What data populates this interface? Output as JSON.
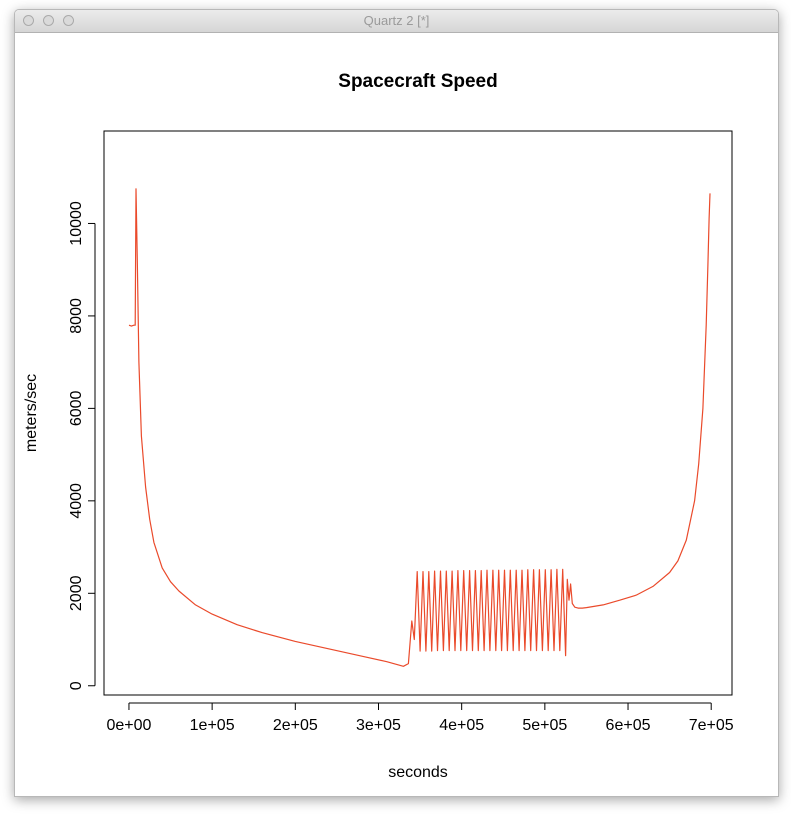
{
  "window": {
    "title": "Quartz 2 [*]"
  },
  "chart_data": {
    "type": "line",
    "title": "Spacecraft Speed",
    "xlabel": "seconds",
    "ylabel": "meters/sec",
    "xlim": [
      -30000,
      725000
    ],
    "ylim": [
      -200,
      12000
    ],
    "xticks": [
      0,
      100000,
      200000,
      300000,
      400000,
      500000,
      600000,
      700000
    ],
    "xtick_labels": [
      "0e+00",
      "1e+05",
      "2e+05",
      "3e+05",
      "4e+05",
      "5e+05",
      "6e+05",
      "7e+05"
    ],
    "yticks": [
      0,
      2000,
      4000,
      6000,
      8000,
      10000
    ],
    "ytick_labels": [
      "0",
      "2000",
      "4000",
      "6000",
      "8000",
      "10000"
    ],
    "grid": false,
    "legend": "none",
    "series": [
      {
        "color": "#ea4a2b",
        "x": [
          0,
          3000,
          6000,
          7500,
          8500,
          10000,
          12000,
          15000,
          20000,
          25000,
          30000,
          40000,
          50000,
          60000,
          80000,
          100000,
          130000,
          160000,
          200000,
          240000,
          280000,
          310000,
          330000,
          336000,
          340000,
          343000,
          346500,
          350000,
          353500,
          357000,
          360500,
          364000,
          367500,
          371000,
          374500,
          378000,
          381500,
          385000,
          388500,
          392000,
          395500,
          399000,
          402500,
          406000,
          409500,
          413000,
          416500,
          420000,
          423500,
          427000,
          430500,
          434000,
          437500,
          441000,
          444500,
          448000,
          451500,
          455000,
          458500,
          462000,
          465500,
          469000,
          472500,
          476000,
          479500,
          483000,
          486500,
          490000,
          493500,
          497000,
          500500,
          504000,
          507500,
          511000,
          514500,
          518000,
          521500,
          525000,
          527000,
          529000,
          531000,
          533000,
          536000,
          540000,
          545000,
          550000,
          570000,
          590000,
          610000,
          630000,
          650000,
          660000,
          670000,
          680000,
          685000,
          690000,
          694000,
          696000,
          697500,
          698500
        ],
        "y": [
          7800,
          7780,
          7800,
          7800,
          10750,
          9200,
          7000,
          5400,
          4300,
          3600,
          3100,
          2550,
          2250,
          2050,
          1750,
          1550,
          1320,
          1150,
          960,
          800,
          640,
          520,
          420,
          480,
          1400,
          1000,
          2470,
          750,
          2470,
          750,
          2470,
          750,
          2480,
          760,
          2480,
          760,
          2480,
          760,
          2480,
          760,
          2490,
          760,
          2490,
          760,
          2490,
          760,
          2490,
          760,
          2490,
          760,
          2500,
          760,
          2500,
          760,
          2500,
          760,
          2500,
          760,
          2500,
          760,
          2500,
          760,
          2500,
          760,
          2510,
          760,
          2510,
          760,
          2510,
          760,
          2510,
          760,
          2510,
          760,
          2520,
          760,
          2520,
          650,
          2300,
          1850,
          2200,
          1780,
          1700,
          1680,
          1680,
          1690,
          1750,
          1850,
          1960,
          2150,
          2450,
          2700,
          3150,
          4000,
          4800,
          6000,
          7800,
          9100,
          10100,
          10650
        ]
      }
    ]
  }
}
